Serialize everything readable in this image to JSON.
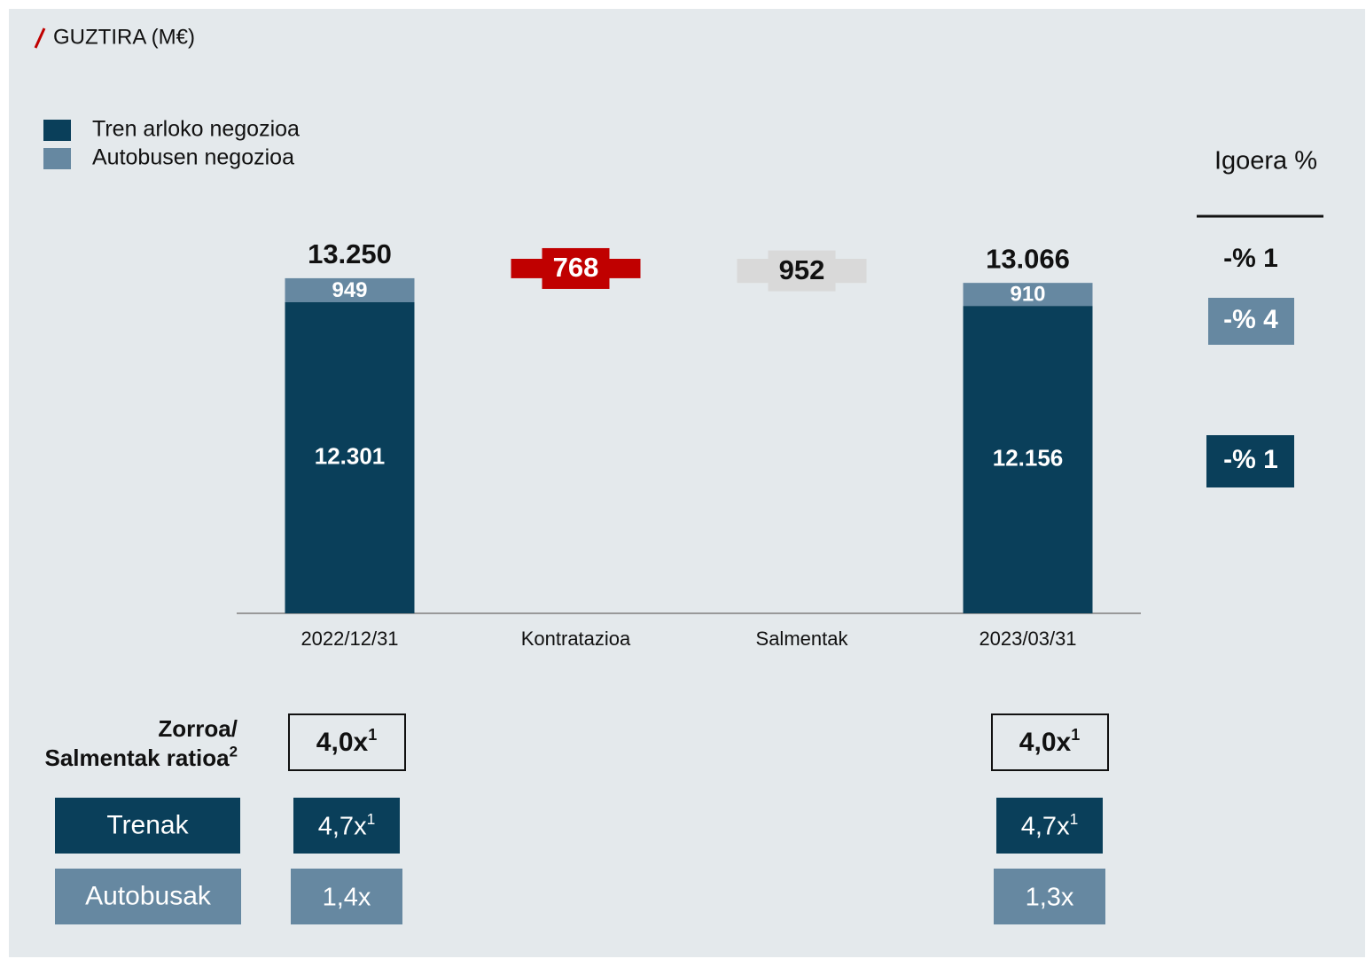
{
  "chart_data": {
    "type": "waterfall",
    "title": "GUZTIRA (M€)",
    "categories": [
      "2022/12/31",
      "Kontratazioa",
      "Salmentak",
      "2023/03/31"
    ],
    "series": [
      {
        "name": "Tren arloko negozioa",
        "color": "#0a3f5a",
        "values": [
          12301,
          null,
          null,
          12156
        ],
        "value_labels": [
          "12.301",
          null,
          null,
          "12.156"
        ]
      },
      {
        "name": "Autobusen negozioa",
        "color": "#6688a1",
        "values": [
          949,
          null,
          null,
          910
        ],
        "value_labels": [
          "949",
          null,
          null,
          "910"
        ]
      }
    ],
    "steps": {
      "values": [
        null,
        768,
        -952,
        null
      ],
      "value_labels": [
        null,
        "768",
        "952",
        null
      ],
      "colors": [
        null,
        "#c00000",
        "#d9d9d9",
        null
      ]
    },
    "totals": [
      13250,
      null,
      null,
      13066
    ],
    "total_labels": [
      "13.250",
      null,
      null,
      "13.066"
    ],
    "growth": {
      "title": "Igoera %",
      "items": [
        "-% 1",
        "-% 4",
        "-% 1"
      ]
    },
    "ratios": {
      "title": {
        "lines": [
          "Zorroa/",
          "Salmentak ratioa"
        ],
        "note": "2"
      },
      "total": [
        {
          "text": "4,0x",
          "note": "1"
        },
        {
          "text": "4,0x",
          "note": "1"
        }
      ],
      "rows": [
        {
          "name": "Trenak",
          "cells": [
            {
              "text": "4,7x",
              "note": "1"
            },
            {
              "text": "4,7x",
              "note": "1"
            }
          ]
        },
        {
          "name": "Autobusak",
          "cells": [
            {
              "text": "1,4x"
            },
            {
              "text": "1,3x"
            }
          ]
        }
      ]
    }
  }
}
